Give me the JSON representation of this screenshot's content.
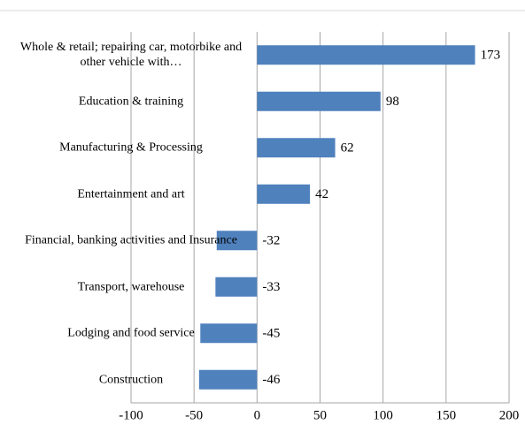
{
  "chart_data": {
    "type": "barh",
    "categories": [
      "Whole & retail; repairing car, motorbike and other vehicle with…",
      "Education & training",
      "Manufacturing & Processing",
      "Entertainment and art",
      "Financial, banking activities and Insurance",
      "Transport, warehouse",
      "Lodging and food service",
      "Construction"
    ],
    "values": [
      173,
      98,
      62,
      42,
      -32,
      -33,
      -45,
      -46
    ],
    "color": "#4f81bd",
    "xlim": [
      -100,
      200
    ],
    "xticks": [
      -100,
      -50,
      0,
      50,
      100,
      150,
      200
    ],
    "grid": true
  }
}
